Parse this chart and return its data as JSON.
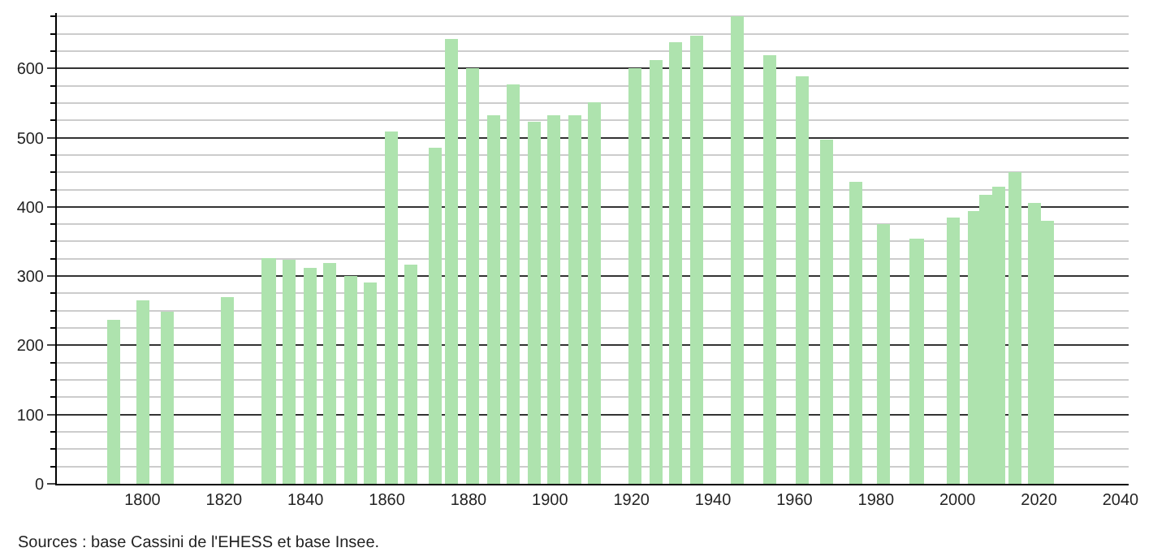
{
  "chart_data": {
    "type": "bar",
    "x": [
      1793,
      1800,
      1806,
      1821,
      1831,
      1836,
      1841,
      1846,
      1851,
      1856,
      1861,
      1866,
      1872,
      1876,
      1881,
      1886,
      1891,
      1896,
      1901,
      1906,
      1911,
      1921,
      1926,
      1931,
      1936,
      1946,
      1954,
      1962,
      1968,
      1975,
      1982,
      1990,
      1999,
      2004,
      2007,
      2010,
      2014,
      2019,
      2022
    ],
    "values": [
      236,
      266,
      249,
      269,
      327,
      324,
      313,
      318,
      300,
      290,
      510,
      316,
      486,
      643,
      600,
      533,
      576,
      524,
      533,
      533,
      551,
      600,
      612,
      638,
      647,
      676,
      619,
      589,
      498,
      435,
      375,
      355,
      385,
      393,
      418,
      429,
      450,
      406,
      379
    ],
    "color": "#aee3ae",
    "xlim": [
      1779,
      2042
    ],
    "xticks": [
      1800,
      1820,
      1840,
      1860,
      1880,
      1900,
      1920,
      1940,
      1960,
      1980,
      2000,
      2020,
      2040
    ],
    "ylim": [
      0,
      680
    ],
    "yticks": [
      0,
      100,
      200,
      300,
      400,
      500,
      600
    ],
    "grid": "y",
    "annotations": [
      "Sources : base Cassini de l'EHESS et base Insee."
    ]
  }
}
